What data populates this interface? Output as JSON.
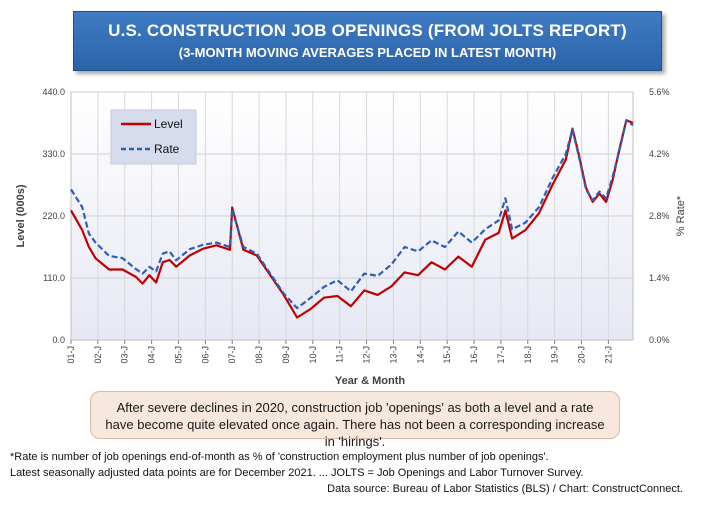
{
  "title": {
    "line1": "U.S. CONSTRUCTION JOB OPENINGS (FROM JOLTS REPORT)",
    "line2": "(3-MONTH MOVING AVERAGES PLACED IN LATEST MONTH)"
  },
  "note": "After severe declines in 2020, construction job 'openings' as both a level and a rate have become quite elevated once again. There has not been a corresponding increase in 'hirings'.",
  "footnotes": [
    "*Rate is number of job openings end-of-month as % of 'construction employment plus number of job openings'.",
    "Latest seasonally adjusted data points are for December 2021. ... JOLTS = Job Openings and Labor Turnover Survey.",
    "Data source: Bureau of Labor Statistics (BLS) / Chart: ConstructConnect."
  ],
  "chart_data": {
    "type": "line",
    "xlabel": "Year & Month",
    "ylabel": "Level (000s)",
    "y2label": "% Rate*",
    "ylim": [
      0,
      440
    ],
    "y2lim": [
      0,
      5.6
    ],
    "yticks": [
      "0.0",
      "110.0",
      "220.0",
      "330.0",
      "440.0"
    ],
    "y2ticks": [
      "0.0%",
      "1.4%",
      "2.8%",
      "4.2%",
      "5.6%"
    ],
    "x_start": "2001-01",
    "x_end": "2021-12",
    "xticks": [
      "01-J",
      "02-J",
      "03-J",
      "04-J",
      "05-J",
      "06-J",
      "07-J",
      "08-J",
      "09-J",
      "10-J",
      "11-J",
      "12-J",
      "13-J",
      "14-J",
      "15-J",
      "16-J",
      "17-J",
      "18-J",
      "19-J",
      "20-J",
      "21-J"
    ],
    "grid": true,
    "legend_position": "top-left",
    "colors": {
      "level": "#c00000",
      "rate": "#2f5fb3"
    },
    "series": [
      {
        "name": "Level",
        "axis": "left",
        "points": [
          [
            "2001-01",
            230
          ],
          [
            "2001-06",
            195
          ],
          [
            "2001-09",
            165
          ],
          [
            "2001-12",
            145
          ],
          [
            "2002-06",
            125
          ],
          [
            "2002-12",
            125
          ],
          [
            "2003-06",
            112
          ],
          [
            "2003-09",
            100
          ],
          [
            "2003-12",
            115
          ],
          [
            "2004-03",
            102
          ],
          [
            "2004-06",
            138
          ],
          [
            "2004-09",
            142
          ],
          [
            "2004-12",
            130
          ],
          [
            "2005-06",
            150
          ],
          [
            "2005-12",
            162
          ],
          [
            "2006-06",
            168
          ],
          [
            "2006-12",
            160
          ],
          [
            "2007-01",
            235
          ],
          [
            "2007-06",
            160
          ],
          [
            "2007-12",
            150
          ],
          [
            "2008-06",
            115
          ],
          [
            "2008-12",
            80
          ],
          [
            "2009-06",
            40
          ],
          [
            "2009-12",
            55
          ],
          [
            "2010-06",
            75
          ],
          [
            "2010-12",
            78
          ],
          [
            "2011-06",
            60
          ],
          [
            "2011-12",
            88
          ],
          [
            "2012-06",
            80
          ],
          [
            "2012-12",
            95
          ],
          [
            "2013-06",
            120
          ],
          [
            "2013-12",
            115
          ],
          [
            "2014-06",
            138
          ],
          [
            "2014-12",
            125
          ],
          [
            "2015-06",
            148
          ],
          [
            "2015-12",
            130
          ],
          [
            "2016-06",
            178
          ],
          [
            "2016-12",
            190
          ],
          [
            "2017-03",
            230
          ],
          [
            "2017-06",
            180
          ],
          [
            "2017-12",
            195
          ],
          [
            "2018-06",
            225
          ],
          [
            "2018-12",
            275
          ],
          [
            "2019-06",
            320
          ],
          [
            "2019-09",
            375
          ],
          [
            "2019-12",
            325
          ],
          [
            "2020-03",
            270
          ],
          [
            "2020-06",
            245
          ],
          [
            "2020-09",
            260
          ],
          [
            "2020-12",
            245
          ],
          [
            "2021-03",
            285
          ],
          [
            "2021-06",
            340
          ],
          [
            "2021-09",
            390
          ],
          [
            "2021-12",
            385
          ]
        ]
      },
      {
        "name": "Rate",
        "axis": "right",
        "points": [
          [
            "2001-01",
            3.4
          ],
          [
            "2001-06",
            3.0
          ],
          [
            "2001-09",
            2.4
          ],
          [
            "2001-12",
            2.2
          ],
          [
            "2002-06",
            1.9
          ],
          [
            "2002-12",
            1.85
          ],
          [
            "2003-06",
            1.6
          ],
          [
            "2003-09",
            1.5
          ],
          [
            "2003-12",
            1.65
          ],
          [
            "2004-03",
            1.55
          ],
          [
            "2004-06",
            1.95
          ],
          [
            "2004-09",
            2.0
          ],
          [
            "2004-12",
            1.8
          ],
          [
            "2005-06",
            2.05
          ],
          [
            "2005-12",
            2.15
          ],
          [
            "2006-06",
            2.2
          ],
          [
            "2006-12",
            2.1
          ],
          [
            "2007-01",
            2.95
          ],
          [
            "2007-06",
            2.1
          ],
          [
            "2007-12",
            1.95
          ],
          [
            "2008-06",
            1.5
          ],
          [
            "2008-12",
            1.05
          ],
          [
            "2009-06",
            0.72
          ],
          [
            "2009-12",
            0.95
          ],
          [
            "2010-06",
            1.2
          ],
          [
            "2010-12",
            1.35
          ],
          [
            "2011-06",
            1.1
          ],
          [
            "2011-12",
            1.5
          ],
          [
            "2012-06",
            1.45
          ],
          [
            "2012-12",
            1.7
          ],
          [
            "2013-06",
            2.1
          ],
          [
            "2013-12",
            2.0
          ],
          [
            "2014-06",
            2.25
          ],
          [
            "2014-12",
            2.1
          ],
          [
            "2015-06",
            2.45
          ],
          [
            "2015-12",
            2.2
          ],
          [
            "2016-06",
            2.5
          ],
          [
            "2016-12",
            2.7
          ],
          [
            "2017-03",
            3.2
          ],
          [
            "2017-06",
            2.5
          ],
          [
            "2017-12",
            2.65
          ],
          [
            "2018-06",
            3.0
          ],
          [
            "2018-12",
            3.65
          ],
          [
            "2019-06",
            4.2
          ],
          [
            "2019-09",
            4.75
          ],
          [
            "2019-12",
            4.1
          ],
          [
            "2020-03",
            3.4
          ],
          [
            "2020-06",
            3.15
          ],
          [
            "2020-09",
            3.35
          ],
          [
            "2020-12",
            3.2
          ],
          [
            "2021-03",
            3.7
          ],
          [
            "2021-06",
            4.3
          ],
          [
            "2021-09",
            4.95
          ],
          [
            "2021-12",
            4.85
          ]
        ]
      }
    ]
  }
}
